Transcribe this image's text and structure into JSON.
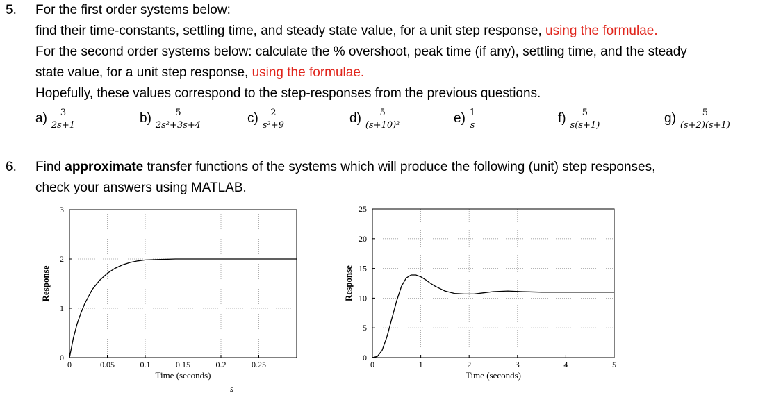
{
  "q5": {
    "number": "5.",
    "line1": "For the first order systems below:",
    "line2a": "find their time-constants, settling time, and steady state value, for a unit step response, ",
    "line2red": "using the formulae.",
    "line3": "For the second order systems below: calculate the % overshoot, peak time (if any), settling time, and the steady",
    "line4a": "state value, for a unit step response, ",
    "line4red": "using the formulae.",
    "line5": "Hopefully, these values correspond to the step-responses from the previous questions.",
    "tfs": [
      {
        "label": "a)",
        "num": "3",
        "den": "2s+1"
      },
      {
        "label": "b)",
        "num": "5",
        "den": "2s²+3s+4"
      },
      {
        "label": "c)",
        "num": "2",
        "den": "s²+9"
      },
      {
        "label": "d)",
        "num": "5",
        "den": "(s+10)²"
      },
      {
        "label": "e)",
        "num": "1",
        "den": "s"
      },
      {
        "label": "f)",
        "num": "5",
        "den": "s(s+1)"
      },
      {
        "label": "g)",
        "num": "5",
        "den": "(s+2)(s+1)"
      }
    ]
  },
  "q6": {
    "number": "6.",
    "line1a": "Find ",
    "line1u": "approximate",
    "line1b": " transfer functions of the systems which will produce the following (unit) step responses,",
    "line2": "check your answers using MATLAB."
  },
  "trailing_mark": "s",
  "chart_data": [
    {
      "type": "line",
      "title": "",
      "xlabel": "Time (seconds)",
      "ylabel": "Response",
      "xlim": [
        0,
        0.3
      ],
      "ylim": [
        0,
        3
      ],
      "xticks": [
        "0",
        "0.05",
        "0.1",
        "0.15",
        "0.2",
        "0.25"
      ],
      "yticks": [
        "0",
        "1",
        "2",
        "3"
      ],
      "grid": true,
      "x": [
        0,
        0.005,
        0.01,
        0.015,
        0.02,
        0.03,
        0.04,
        0.05,
        0.06,
        0.07,
        0.08,
        0.09,
        0.1,
        0.12,
        0.14,
        0.16,
        0.2,
        0.25,
        0.3
      ],
      "values": [
        0,
        0.39,
        0.68,
        0.9,
        1.09,
        1.38,
        1.57,
        1.71,
        1.81,
        1.88,
        1.93,
        1.96,
        1.98,
        1.99,
        2.0,
        2.0,
        2.0,
        2.0,
        2.0
      ]
    },
    {
      "type": "line",
      "title": "",
      "xlabel": "Time (seconds)",
      "ylabel": "Response",
      "xlim": [
        0,
        5
      ],
      "ylim": [
        0,
        25
      ],
      "xticks": [
        "0",
        "1",
        "2",
        "3",
        "4",
        "5"
      ],
      "yticks": [
        "0",
        "5",
        "10",
        "15",
        "20",
        "25"
      ],
      "grid": true,
      "x": [
        0,
        0.1,
        0.2,
        0.3,
        0.4,
        0.5,
        0.6,
        0.7,
        0.8,
        0.9,
        1.0,
        1.1,
        1.2,
        1.3,
        1.5,
        1.7,
        1.9,
        2.1,
        2.3,
        2.5,
        2.8,
        3.1,
        3.5,
        4.0,
        4.5,
        5.0
      ],
      "values": [
        0,
        0.2,
        1.2,
        3.5,
        6.5,
        9.5,
        12.0,
        13.4,
        13.9,
        13.9,
        13.6,
        13.1,
        12.5,
        12.0,
        11.2,
        10.8,
        10.7,
        10.7,
        10.9,
        11.1,
        11.2,
        11.1,
        11.0,
        11.0,
        11.0,
        11.0
      ]
    }
  ]
}
